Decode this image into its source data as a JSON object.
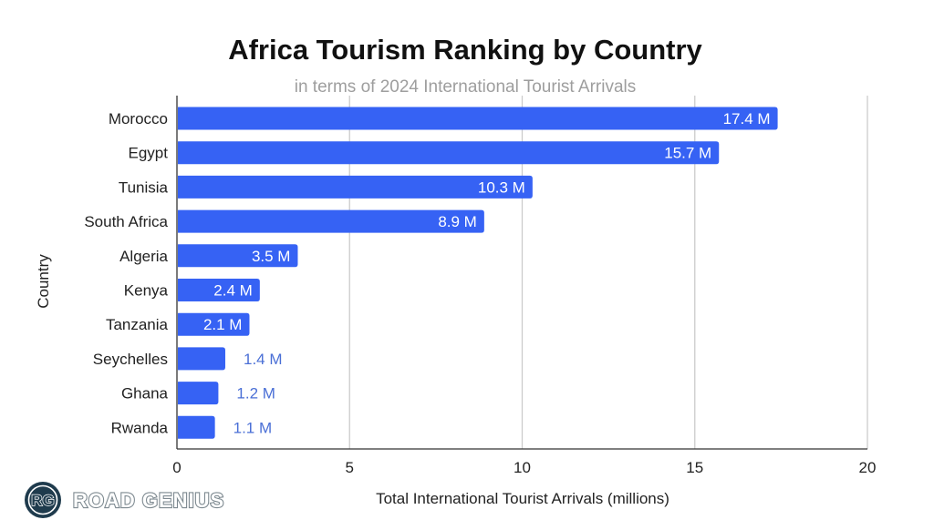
{
  "chart_data": {
    "type": "bar",
    "orientation": "horizontal",
    "title": "Africa Tourism Ranking by Country",
    "subtitle": "in terms of 2024 International Tourist Arrivals",
    "xlabel": "Total International Tourist Arrivals (millions)",
    "ylabel": "Country",
    "xlim": [
      0,
      20
    ],
    "xticks": [
      0,
      5,
      10,
      15,
      20
    ],
    "grid": true,
    "legend": "none",
    "categories": [
      "Morocco",
      "Egypt",
      "Tunisia",
      "South Africa",
      "Algeria",
      "Kenya",
      "Tanzania",
      "Seychelles",
      "Ghana",
      "Rwanda"
    ],
    "values": [
      17.4,
      15.7,
      10.3,
      8.9,
      3.5,
      2.4,
      2.1,
      1.4,
      1.2,
      1.1
    ],
    "data_labels": [
      "17.4 M",
      "15.7 M",
      "10.3 M",
      "8.9 M",
      "3.5 M",
      "2.4 M",
      "2.1 M",
      "1.4 M",
      "1.2 M",
      "1.1 M"
    ],
    "bar_color": "#3662f4",
    "label_inside_color": "#ffffff",
    "label_outside_color": "#4a6fd6",
    "gridline_color": "#cccccc"
  },
  "brand": {
    "logo_initials": "RG",
    "name": "ROAD GENIUS",
    "logo_color": "#1f3b4d"
  }
}
